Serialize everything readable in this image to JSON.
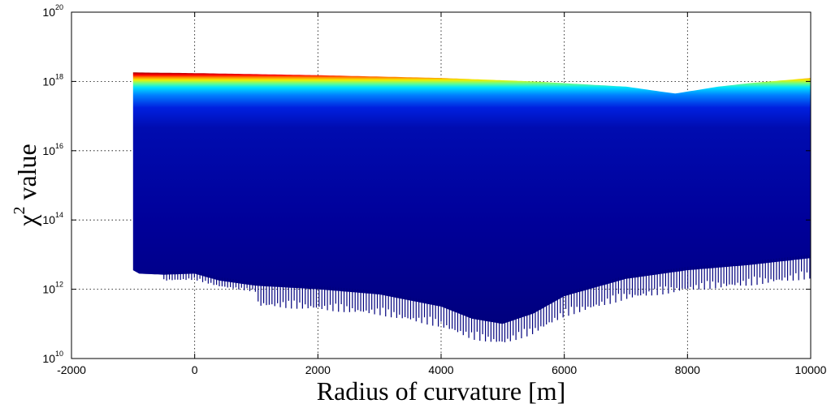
{
  "chart_data": {
    "type": "area",
    "xlabel": "Radius of curvature [m]",
    "ylabel_symbol": "χ",
    "ylabel_exp": "2",
    "ylabel_rest": " value",
    "xlim": [
      -2000,
      10000
    ],
    "ylim_log10": [
      10,
      20
    ],
    "yscale": "log",
    "grid": true,
    "colormap": "jet",
    "x_ticks": [
      "-2000",
      "0",
      "2000",
      "4000",
      "6000",
      "8000",
      "10000"
    ],
    "y_ticks": [
      {
        "base": "10",
        "exp": "10"
      },
      {
        "base": "10",
        "exp": "12"
      },
      {
        "base": "10",
        "exp": "14"
      },
      {
        "base": "10",
        "exp": "16"
      },
      {
        "base": "10",
        "exp": "18"
      },
      {
        "base": "10",
        "exp": "20"
      }
    ],
    "x_range_data": [
      -1000,
      10000
    ],
    "upper_envelope": {
      "x": [
        -1000,
        0,
        2000,
        4000,
        5500,
        6000,
        7000,
        7800,
        8500,
        9000,
        10000
      ],
      "log10_y": [
        18.26,
        18.24,
        18.18,
        18.1,
        18.0,
        17.95,
        17.85,
        17.65,
        17.85,
        17.95,
        18.1
      ]
    },
    "lower_envelope": {
      "x": [
        -1000,
        -900,
        -500,
        0,
        400,
        1000,
        2000,
        3000,
        4000,
        4500,
        5000,
        5500,
        6000,
        7000,
        8000,
        9000,
        10000
      ],
      "log10_y": [
        12.55,
        12.45,
        12.42,
        12.45,
        12.25,
        12.1,
        12.0,
        11.85,
        11.5,
        11.15,
        11.0,
        11.3,
        11.8,
        12.3,
        12.55,
        12.7,
        12.9
      ]
    }
  }
}
